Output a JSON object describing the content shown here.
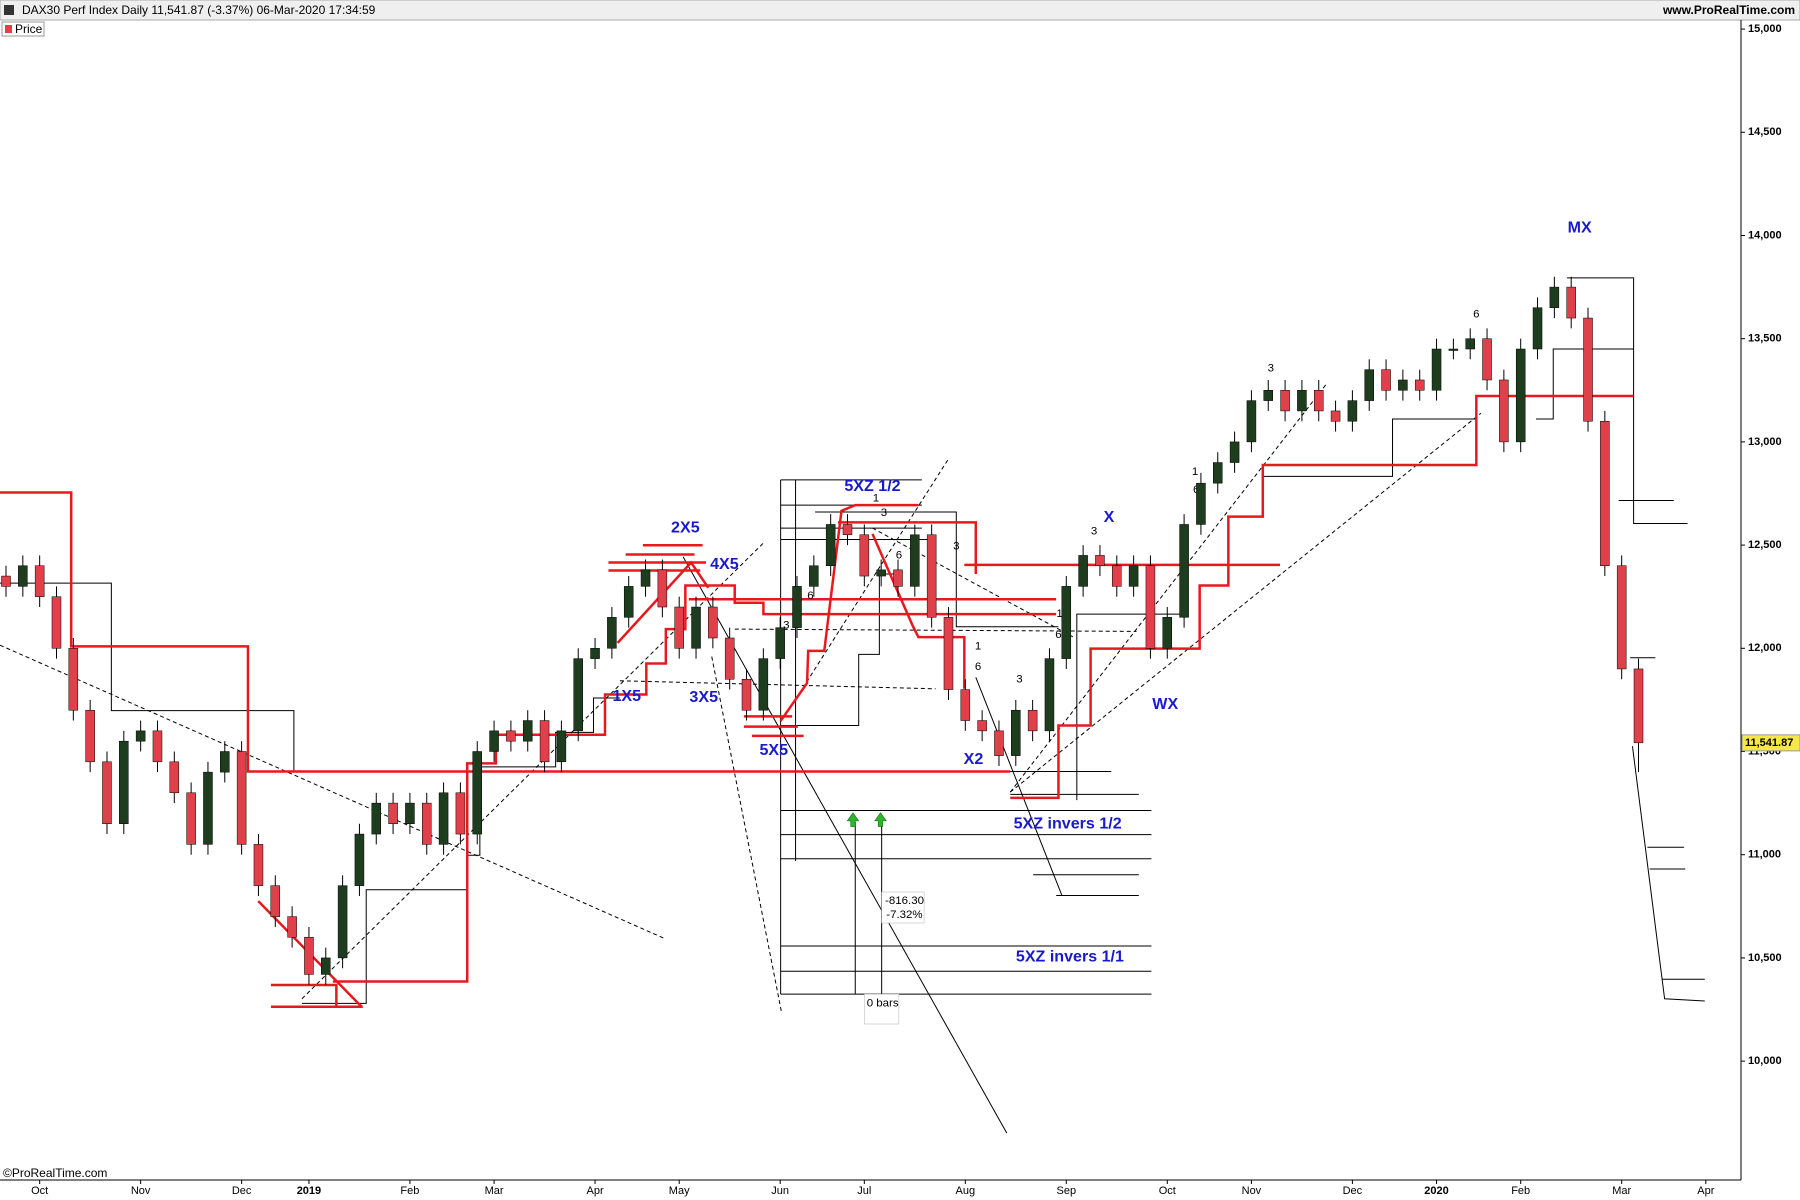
{
  "chart_data": {
    "type": "candlestick",
    "title": "DAX30 Perf Index Daily 11,541.87 (-3.37%) 06-Mar-2020 17:34:59",
    "source": "www.ProRealTime.com",
    "copyright": "©ProRealTime.com",
    "up_color": "#1e3d1e",
    "down_color": "#e0404a",
    "grid": false,
    "ylim": [
      9424,
      15044
    ],
    "yticks": [
      {
        "value": 10000,
        "label": "10,000"
      },
      {
        "value": 10500,
        "label": "10,500"
      },
      {
        "value": 11000,
        "label": "11,000"
      },
      {
        "value": 11500,
        "label": "11,500"
      },
      {
        "value": 12000,
        "label": "12,000"
      },
      {
        "value": 12500,
        "label": "12,500"
      },
      {
        "value": 13000,
        "label": "13,000"
      },
      {
        "value": 13500,
        "label": "13,500"
      },
      {
        "value": 14000,
        "label": "14,000"
      },
      {
        "value": 14500,
        "label": "14,500"
      },
      {
        "value": 15000,
        "label": "15,000"
      }
    ],
    "last_price": {
      "value": 11541.87,
      "label": "11,541.87"
    },
    "categories": [
      null,
      null,
      "Oct",
      null,
      null,
      null,
      null,
      null,
      "Nov",
      null,
      null,
      null,
      null,
      null,
      "Dec",
      null,
      null,
      null,
      "2019",
      null,
      null,
      null,
      null,
      null,
      "Feb",
      null,
      null,
      null,
      null,
      "Mar",
      null,
      null,
      null,
      null,
      null,
      "Apr",
      null,
      null,
      null,
      null,
      "May",
      null,
      null,
      null,
      null,
      null,
      "Jun",
      null,
      null,
      null,
      null,
      "Jul",
      null,
      null,
      null,
      null,
      null,
      "Aug",
      null,
      null,
      null,
      null,
      null,
      "Sep",
      null,
      null,
      null,
      null,
      null,
      "Oct",
      null,
      null,
      null,
      null,
      "Nov",
      null,
      null,
      null,
      null,
      null,
      "Dec",
      null,
      null,
      null,
      null,
      "2020",
      null,
      null,
      null,
      null,
      "Feb",
      null,
      null,
      null,
      null,
      null,
      "Mar",
      null,
      null,
      null,
      null,
      "Apr"
    ],
    "series": [
      {
        "name": "Price",
        "open": [
          12350,
          12300,
          12400,
          12250,
          12000,
          11700,
          11450,
          11150,
          11550,
          11600,
          11450,
          11300,
          11050,
          11400,
          11500,
          11050,
          10850,
          10700,
          10600,
          10420,
          10500,
          10850,
          11100,
          11250,
          11150,
          11250,
          11050,
          11300,
          11100,
          11500,
          11600,
          11550,
          11650,
          11450,
          11600,
          11950,
          12000,
          12150,
          12300,
          12380,
          12200,
          12000,
          12200,
          12050,
          11850,
          11700,
          11950,
          12100,
          12300,
          12400,
          12600,
          12550,
          12350,
          12380,
          12300,
          12550,
          12150,
          11800,
          11650,
          11600,
          11480,
          11700,
          11600,
          11950,
          12300,
          12450,
          12400,
          12300,
          12400,
          12000,
          12150,
          12600,
          12800,
          12900,
          13000,
          13200,
          13250,
          13150,
          13250,
          13150,
          13100,
          13200,
          13350,
          13250,
          13300,
          13250,
          13450,
          13450,
          13500,
          13300,
          13000,
          13450,
          13650,
          13750,
          13600,
          13100,
          12400,
          11900,
          null,
          null,
          null,
          null
        ],
        "high": [
          12400,
          12450,
          12450,
          12300,
          12050,
          11750,
          11500,
          11600,
          11650,
          11650,
          11500,
          11350,
          11450,
          11550,
          11550,
          11100,
          10900,
          10750,
          10650,
          10550,
          10900,
          11150,
          11300,
          11300,
          11300,
          11300,
          11350,
          11350,
          11550,
          11650,
          11650,
          11700,
          11700,
          11650,
          12000,
          12050,
          12200,
          12350,
          12430,
          12430,
          12250,
          12250,
          12250,
          12100,
          11900,
          12000,
          12150,
          12350,
          12450,
          12650,
          12650,
          12600,
          12430,
          12430,
          12600,
          12600,
          12200,
          11850,
          11700,
          11650,
          11750,
          11750,
          12000,
          12350,
          12500,
          12500,
          12450,
          12450,
          12450,
          12200,
          12650,
          12850,
          12950,
          13050,
          13250,
          13300,
          13300,
          13300,
          13300,
          13200,
          13250,
          13400,
          13400,
          13350,
          13350,
          13500,
          13500,
          13550,
          13550,
          13350,
          13500,
          13700,
          13800,
          13800,
          13650,
          13150,
          12450,
          11950,
          null,
          null,
          null,
          null
        ],
        "low": [
          12250,
          12250,
          12200,
          11950,
          11650,
          11400,
          11100,
          11100,
          11500,
          11400,
          11250,
          11000,
          11000,
          11350,
          11000,
          10800,
          10650,
          10550,
          10370,
          10370,
          10450,
          10800,
          11050,
          11100,
          11100,
          11000,
          11000,
          11050,
          11050,
          11450,
          11500,
          11500,
          11400,
          11400,
          11550,
          11900,
          11950,
          12100,
          12250,
          12150,
          11950,
          11950,
          12000,
          11800,
          11650,
          11650,
          11900,
          12050,
          12250,
          12350,
          12500,
          12300,
          12300,
          12250,
          12250,
          12100,
          11750,
          11600,
          11550,
          11430,
          11430,
          11550,
          11550,
          11900,
          12250,
          12350,
          12250,
          12250,
          11950,
          11950,
          12100,
          12550,
          12750,
          12850,
          12950,
          13150,
          13100,
          13100,
          13100,
          13050,
          13050,
          13150,
          13200,
          13200,
          13200,
          13200,
          13400,
          13400,
          13250,
          12950,
          12950,
          13400,
          13600,
          13550,
          13050,
          12350,
          11850,
          11400,
          null,
          null,
          null,
          null
        ],
        "close": [
          12300,
          12400,
          12250,
          12000,
          11700,
          11450,
          11150,
          11550,
          11600,
          11450,
          11300,
          11050,
          11400,
          11500,
          11050,
          10850,
          10700,
          10600,
          10420,
          10500,
          10850,
          11100,
          11250,
          11150,
          11250,
          11050,
          11300,
          11100,
          11500,
          11600,
          11550,
          11650,
          11450,
          11600,
          11950,
          12000,
          12150,
          12300,
          12380,
          12200,
          12000,
          12200,
          12050,
          11850,
          11700,
          11950,
          12100,
          12300,
          12400,
          12600,
          12550,
          12350,
          12380,
          12300,
          12550,
          12150,
          11800,
          11650,
          11600,
          11480,
          11700,
          11600,
          11950,
          12300,
          12450,
          12400,
          12300,
          12400,
          12000,
          12150,
          12600,
          12800,
          12900,
          13000,
          13200,
          13250,
          13150,
          13250,
          13150,
          13100,
          13200,
          13350,
          13250,
          13300,
          13250,
          13450,
          13450,
          13500,
          13300,
          13000,
          13450,
          13650,
          13750,
          13600,
          13100,
          12400,
          11900,
          11542,
          null,
          null,
          null,
          null
        ]
      }
    ],
    "annotations": [
      "2X5",
      "4X5",
      "1X5",
      "3X5",
      "5X5",
      "5XZ 1/2",
      "X",
      "WX",
      "X2",
      "MX",
      "5XZ invers 1/2",
      "5XZ invers 1/1"
    ],
    "measure": [
      "-816.30",
      "-7.32%",
      "0 bars"
    ],
    "wave_counts": [
      "3",
      "6",
      "3",
      "1",
      "3",
      "6",
      "3",
      "1",
      "6",
      "3",
      "6",
      "1",
      "3",
      "1",
      "6",
      "3",
      "6"
    ]
  }
}
